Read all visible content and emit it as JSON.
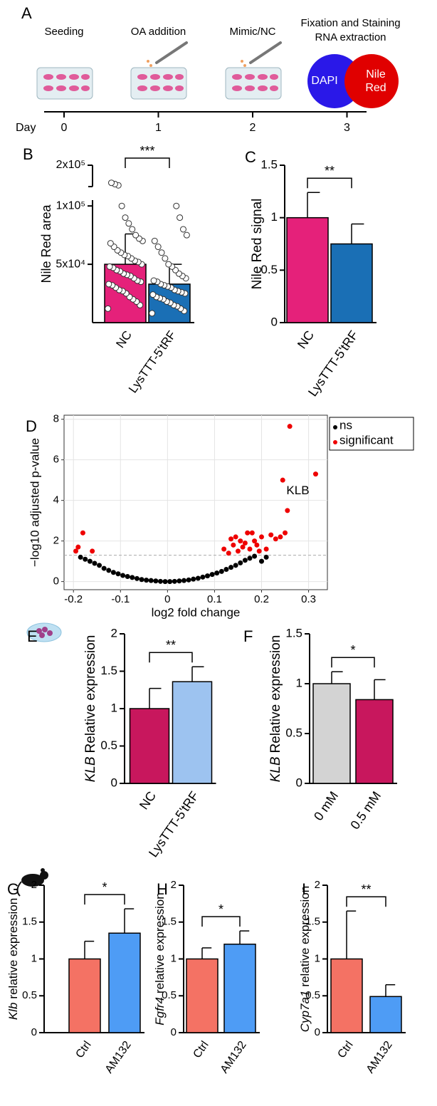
{
  "diagram": {
    "panel_label": "A",
    "day_label": "Day",
    "steps": [
      {
        "day": 0,
        "label": [
          "Seeding"
        ]
      },
      {
        "day": 1,
        "label": [
          "OA addition"
        ]
      },
      {
        "day": 2,
        "label": [
          "Mimic/NC"
        ]
      },
      {
        "day": 3,
        "label": [
          "Fixation and Staining",
          "RNA extraction"
        ]
      }
    ],
    "stains": [
      "DAPI",
      "Nile Red"
    ]
  },
  "chart_data": [
    {
      "type": "bar",
      "panel_label": "B",
      "ylabel": "Nile Red area",
      "categories": [
        "NC",
        "LysTTT-5'tRF"
      ],
      "values": [
        50000,
        33000
      ],
      "errors": [
        26000,
        17000
      ],
      "colors": [
        "#e5217a",
        "#1a6fb5"
      ],
      "points": [
        [
          12000,
          15000,
          18000,
          20000,
          22000,
          25000,
          27000,
          28000,
          30000,
          32000,
          33000,
          35000,
          36000,
          38000,
          40000,
          41000,
          42000,
          44000,
          45000,
          47000,
          48000,
          50000,
          52000,
          53000,
          55000,
          57000,
          58000,
          60000,
          62000,
          65000,
          68000,
          70000,
          72000,
          75000,
          80000,
          85000,
          90000,
          100000,
          120000,
          125000,
          130000
        ],
        [
          8000,
          10000,
          12000,
          14000,
          15000,
          17000,
          18000,
          20000,
          21000,
          22000,
          24000,
          25000,
          26000,
          27000,
          28000,
          30000,
          31000,
          32000,
          33000,
          35000,
          36000,
          38000,
          40000,
          42000,
          45000,
          48000,
          50000,
          55000,
          60000,
          65000,
          70000,
          75000,
          80000,
          90000,
          100000
        ]
      ],
      "ylim": [
        0,
        200000
      ],
      "ybreak": [
        105000,
        115000
      ],
      "yticks": [
        {
          "value": 50000,
          "label": "5x10⁴"
        },
        {
          "value": 100000,
          "label": "1x10⁵"
        },
        {
          "value": 200000,
          "label": "2x10⁵"
        }
      ],
      "significance": "***"
    },
    {
      "type": "bar",
      "panel_label": "C",
      "ylabel": "Nile Red signal",
      "categories": [
        "NC",
        "LysTTT-5'tRF"
      ],
      "values": [
        1.0,
        0.75
      ],
      "errors": [
        0.24,
        0.19
      ],
      "colors": [
        "#e5217a",
        "#1a6fb5"
      ],
      "ylim": [
        0,
        1.5
      ],
      "yticks": [
        0,
        0.5,
        1,
        1.5
      ],
      "significance": "**"
    },
    {
      "type": "scatter",
      "panel_label": "D",
      "xlabel": "log2 fold change",
      "ylabel": "−log10 adjusted p-value",
      "xlim": [
        -0.22,
        0.34
      ],
      "ylim": [
        -0.4,
        8.2
      ],
      "xticks": [
        -0.2,
        -0.1,
        0,
        0.1,
        0.2,
        0.3
      ],
      "yticks": [
        0,
        2,
        4,
        6,
        8
      ],
      "grid": true,
      "threshold": 1.3,
      "annotation": "KLB",
      "legend": "outside-right",
      "series": [
        {
          "name": "ns",
          "color": "#000000",
          "x": [
            -0.185,
            -0.175,
            -0.165,
            -0.155,
            -0.145,
            -0.135,
            -0.125,
            -0.115,
            -0.105,
            -0.095,
            -0.085,
            -0.075,
            -0.065,
            -0.055,
            -0.045,
            -0.035,
            -0.025,
            -0.015,
            -0.005,
            0.005,
            0.015,
            0.025,
            0.035,
            0.045,
            0.055,
            0.065,
            0.075,
            0.085,
            0.095,
            0.105,
            0.115,
            0.125,
            0.135,
            0.145,
            0.155,
            0.165,
            0.175,
            0.185,
            0.2,
            0.21
          ],
          "values": [
            1.2,
            1.1,
            1.0,
            0.9,
            0.8,
            0.65,
            0.55,
            0.45,
            0.38,
            0.3,
            0.25,
            0.2,
            0.15,
            0.1,
            0.07,
            0.05,
            0.03,
            0.01,
            0,
            0,
            0.01,
            0.03,
            0.05,
            0.08,
            0.12,
            0.16,
            0.22,
            0.28,
            0.35,
            0.42,
            0.5,
            0.6,
            0.7,
            0.8,
            0.92,
            1.05,
            1.15,
            1.25,
            1.0,
            1.2
          ]
        },
        {
          "name": "significant",
          "color": "#ee0000",
          "x": [
            -0.195,
            -0.19,
            -0.18,
            -0.16,
            0.12,
            0.13,
            0.135,
            0.14,
            0.145,
            0.15,
            0.155,
            0.16,
            0.165,
            0.17,
            0.175,
            0.18,
            0.185,
            0.19,
            0.195,
            0.2,
            0.21,
            0.22,
            0.23,
            0.24,
            0.245,
            0.25,
            0.255,
            0.26,
            0.315
          ],
          "values": [
            1.5,
            1.7,
            2.4,
            1.5,
            1.6,
            1.4,
            2.1,
            1.8,
            2.2,
            1.5,
            2.0,
            1.7,
            1.9,
            2.4,
            1.6,
            2.4,
            2.0,
            1.8,
            1.5,
            2.2,
            1.6,
            2.3,
            2.1,
            2.2,
            5.0,
            2.4,
            3.5,
            7.65,
            5.3
          ]
        }
      ]
    },
    {
      "type": "bar",
      "panel_label": "E",
      "ylabel_gene": "KLB",
      "ylabel": "Relative expression",
      "categories": [
        "NC",
        "LysTTT-5'tRF"
      ],
      "values": [
        1.0,
        1.36
      ],
      "errors": [
        0.27,
        0.2
      ],
      "colors": [
        "#c8175d",
        "#9dc3f0"
      ],
      "ylim": [
        0,
        2
      ],
      "yticks": [
        0,
        0.5,
        1,
        1.5,
        2
      ],
      "significance": "**"
    },
    {
      "type": "bar",
      "panel_label": "F",
      "ylabel_gene": "KLB",
      "ylabel": "Relative expression",
      "categories": [
        "0 mM",
        "0.5 mM"
      ],
      "values": [
        1.0,
        0.84
      ],
      "errors": [
        0.12,
        0.2
      ],
      "colors": [
        "#d3d3d3",
        "#c8175d"
      ],
      "ylim": [
        0,
        1.5
      ],
      "yticks": [
        0,
        0.5,
        1,
        1.5
      ],
      "significance": "*"
    },
    {
      "type": "bar",
      "panel_label": "G",
      "ylabel_gene": "Klb",
      "ylabel": "relative expression",
      "categories": [
        "Ctrl",
        "AM132"
      ],
      "values": [
        1.0,
        1.35
      ],
      "errors": [
        0.24,
        0.33
      ],
      "colors": [
        "#f47264",
        "#4e9cf5"
      ],
      "ylim": [
        0,
        2
      ],
      "yticks": [
        0,
        0.5,
        1,
        1.5,
        2
      ],
      "significance": "*"
    },
    {
      "type": "bar",
      "panel_label": "H",
      "ylabel_gene": "Fgfr4",
      "ylabel": "relative expression",
      "categories": [
        "Ctrl",
        "AM132"
      ],
      "values": [
        1.0,
        1.2
      ],
      "errors": [
        0.15,
        0.18
      ],
      "colors": [
        "#f47264",
        "#4e9cf5"
      ],
      "ylim": [
        0,
        2
      ],
      "yticks": [
        0,
        0.5,
        1,
        1.5,
        2
      ],
      "significance": "*"
    },
    {
      "type": "bar",
      "panel_label": "I",
      "ylabel_gene": "Cyp7a1",
      "ylabel": "relative expression",
      "categories": [
        "Ctrl",
        "AM132"
      ],
      "values": [
        1.0,
        0.49
      ],
      "errors": [
        0.65,
        0.16
      ],
      "colors": [
        "#f47264",
        "#4e9cf5"
      ],
      "ylim": [
        0,
        2
      ],
      "yticks": [
        0,
        0.5,
        1,
        1.5,
        2
      ],
      "significance": "**"
    }
  ]
}
